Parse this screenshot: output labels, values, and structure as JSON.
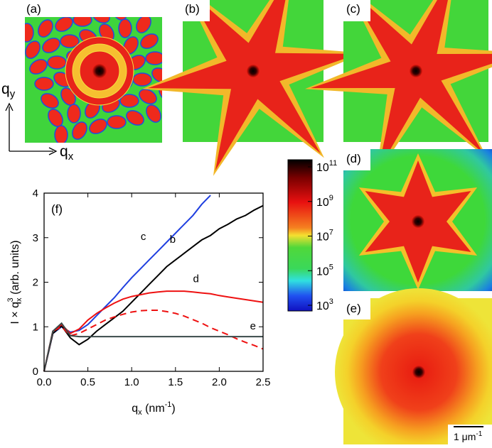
{
  "panels": {
    "a": "(a)",
    "b": "(b)",
    "c": "(c)",
    "d": "(d)",
    "e": "(e)",
    "f": "(f)"
  },
  "axes_arrows": {
    "qy": {
      "base": "q",
      "sub": "y"
    },
    "qx": {
      "base": "q",
      "sub": "x"
    }
  },
  "colorbar": {
    "ticks": [
      {
        "base": "10",
        "sup": "11"
      },
      {
        "base": "10",
        "sup": "9"
      },
      {
        "base": "10",
        "sup": "7"
      },
      {
        "base": "10",
        "sup": "5"
      },
      {
        "base": "10",
        "sup": "3"
      }
    ]
  },
  "scale_bar": {
    "text": "1 μm",
    "sup": "-1"
  },
  "chart_data": {
    "type": "line",
    "x_label": {
      "base": "q",
      "sub": "x",
      "mid": " (nm",
      "sup": "-1",
      "end": ")"
    },
    "y_label": {
      "base": "I × q",
      "sub": "x",
      "sup": "3",
      "end": " (arb. units)"
    },
    "x": [
      0,
      0.1,
      0.2,
      0.3,
      0.4,
      0.5,
      0.6,
      0.7,
      0.8,
      0.9,
      1.0,
      1.1,
      1.2,
      1.3,
      1.4,
      1.5,
      1.6,
      1.7,
      1.8,
      1.9,
      2.0,
      2.1,
      2.2,
      2.3,
      2.4,
      2.5
    ],
    "xlim": [
      0,
      2.5
    ],
    "ylim": [
      0,
      4
    ],
    "xticks": [
      0.0,
      0.5,
      1.0,
      1.5,
      2.0,
      2.5
    ],
    "yticks": [
      0,
      1,
      2,
      3,
      4
    ],
    "series": [
      {
        "name": "c",
        "color": "#1f3fe0",
        "values": [
          0,
          0.85,
          1.0,
          0.88,
          0.92,
          1.05,
          1.25,
          1.45,
          1.65,
          1.88,
          2.1,
          2.3,
          2.5,
          2.7,
          2.9,
          3.1,
          3.3,
          3.5,
          3.75,
          3.95,
          null,
          null,
          null,
          null,
          null,
          null
        ]
      },
      {
        "name": "b",
        "color": "#000000",
        "values": [
          0,
          0.85,
          1.02,
          0.75,
          0.6,
          0.72,
          0.9,
          1.05,
          1.2,
          1.35,
          1.55,
          1.75,
          1.95,
          2.15,
          2.35,
          2.5,
          2.65,
          2.8,
          2.95,
          3.05,
          3.2,
          3.3,
          3.42,
          3.5,
          3.62,
          3.72
        ]
      },
      {
        "name": "d",
        "color": "#ee1111",
        "values": [
          0,
          0.9,
          1.05,
          0.85,
          0.95,
          1.15,
          1.3,
          1.42,
          1.53,
          1.62,
          1.68,
          1.72,
          1.76,
          1.78,
          1.8,
          1.8,
          1.8,
          1.78,
          1.76,
          1.74,
          1.7,
          1.67,
          1.64,
          1.61,
          1.58,
          1.55
        ]
      },
      {
        "color": "#ee1111",
        "dashed": true,
        "values": [
          0,
          0.9,
          1.0,
          0.8,
          0.85,
          0.95,
          1.05,
          1.15,
          1.22,
          1.28,
          1.33,
          1.36,
          1.37,
          1.37,
          1.34,
          1.3,
          1.24,
          1.16,
          1.08,
          0.98,
          0.9,
          0.82,
          0.73,
          0.65,
          0.58,
          0.5
        ]
      },
      {
        "name": "e",
        "color": "#3a4a4a",
        "values": [
          0,
          0.9,
          1.08,
          0.8,
          0.78,
          0.78,
          0.78,
          0.78,
          0.78,
          0.78,
          0.78,
          0.78,
          0.78,
          0.78,
          0.78,
          0.78,
          0.78,
          0.78,
          0.78,
          0.78,
          0.78,
          0.78,
          0.78,
          0.78,
          0.78,
          0.78
        ]
      }
    ]
  }
}
